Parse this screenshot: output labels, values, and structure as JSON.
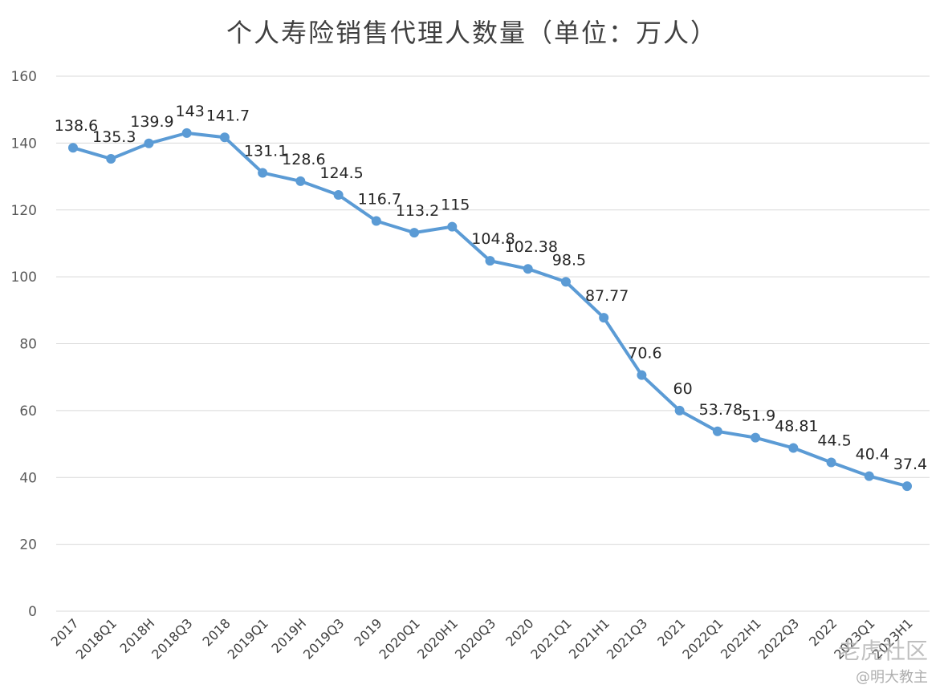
{
  "chart_data": {
    "type": "line",
    "title": "个人寿险销售代理人数量（单位：万人）",
    "xlabel": "",
    "ylabel": "",
    "ylim": [
      0,
      160
    ],
    "yticks": [
      0,
      20,
      40,
      60,
      80,
      100,
      120,
      140,
      160
    ],
    "grid": true,
    "color": "#5b9bd5",
    "categories": [
      "2017",
      "2018Q1",
      "2018H",
      "2018Q3",
      "2018",
      "2019Q1",
      "2019H",
      "2019Q3",
      "2019",
      "2020Q1",
      "2020H1",
      "2020Q3",
      "2020",
      "2021Q1",
      "2021H1",
      "2021Q3",
      "2021",
      "2022Q1",
      "2022H1",
      "2022Q3",
      "2022",
      "2023Q1",
      "2023H1"
    ],
    "values": [
      138.6,
      135.3,
      139.9,
      143,
      141.7,
      131.1,
      128.6,
      124.5,
      116.7,
      113.2,
      115,
      104.8,
      102.38,
      98.5,
      87.77,
      70.6,
      60,
      53.78,
      51.9,
      48.81,
      44.5,
      40.4,
      37.4
    ],
    "labels": [
      "138.6",
      "135.3",
      "139.9",
      "143",
      "141.7",
      "131.1",
      "128.6",
      "124.5",
      "116.7",
      "113.2",
      "115",
      "104.8",
      "102.38",
      "98.5",
      "87.77",
      "70.6",
      "60",
      "53.78",
      "51.9",
      "48.81",
      "44.5",
      "40.4",
      "37.4"
    ]
  },
  "watermark": {
    "line1": "老虎社区",
    "line2": "@明大教主"
  }
}
